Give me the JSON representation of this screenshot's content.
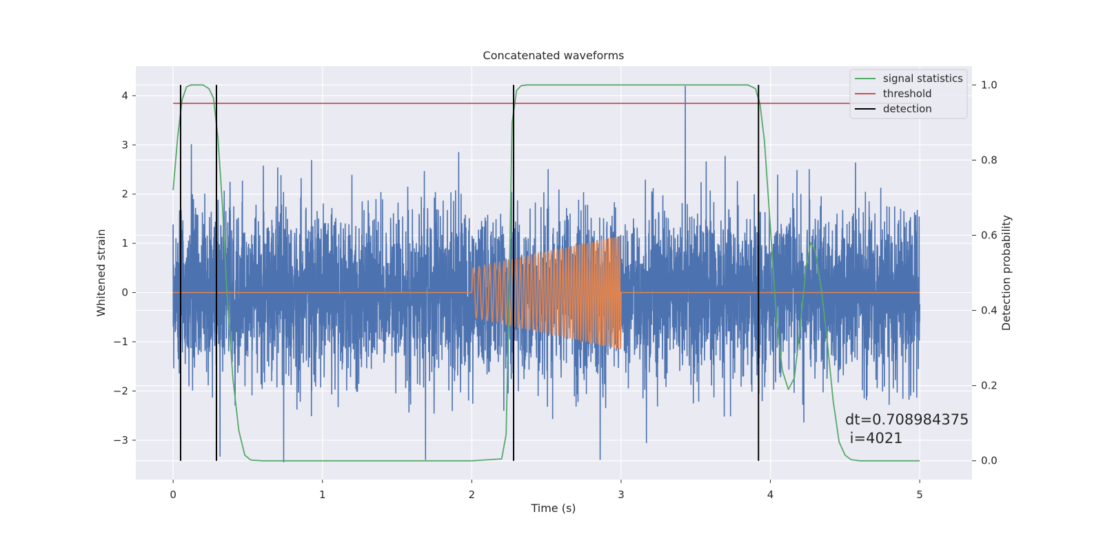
{
  "chart_data": {
    "type": "line",
    "title": "Concatenated waveforms",
    "xlabel": "Time (s)",
    "ylabel_left": "Whitened strain",
    "ylabel_right": "Detection probability",
    "xlim": [
      -0.25,
      5.35
    ],
    "ylim_left": [
      -3.8,
      4.6
    ],
    "ylim_right": [
      -0.05,
      1.05
    ],
    "x_ticks": [
      0,
      1,
      2,
      3,
      4,
      5
    ],
    "x_tick_labels": [
      "0",
      "1",
      "2",
      "3",
      "4",
      "5"
    ],
    "y_ticks_left": [
      -3,
      -2,
      -1,
      0,
      1,
      2,
      3,
      4
    ],
    "y_tick_labels_left": [
      "−3",
      "−2",
      "−1",
      "0",
      "1",
      "2",
      "3",
      "4"
    ],
    "y_ticks_right": [
      0.0,
      0.2,
      0.4,
      0.6,
      0.8,
      1.0
    ],
    "y_tick_labels_right": [
      "0.0",
      "0.2",
      "0.4",
      "0.6",
      "0.8",
      "1.0"
    ],
    "grid": true,
    "legend_position": "top-right",
    "series": [
      {
        "name": "",
        "axis": "left",
        "style": "noise",
        "color": "#4c72b0",
        "x_range": [
          0,
          5
        ],
        "amplitude_std": 0.85,
        "peak_values": [
          {
            "x": 3.43,
            "y": 4.2
          },
          {
            "x": 1.69,
            "y": -3.4
          },
          {
            "x": 0.74,
            "y": -3.45
          },
          {
            "x": 2.86,
            "y": -3.4
          },
          {
            "x": 0.05,
            "y": -3.1
          }
        ]
      },
      {
        "name": "",
        "axis": "left",
        "style": "chirp",
        "color": "#dd8452",
        "x_range": [
          0,
          5
        ],
        "chirp_start": 2.0,
        "chirp_end": 3.0,
        "amp_start": 0.5,
        "amp_end": 1.15,
        "freq_start": 24,
        "freq_end": 70
      },
      {
        "name": "signal statistics",
        "axis": "right",
        "color": "#55a868",
        "x": [
          0.0,
          0.03,
          0.06,
          0.09,
          0.12,
          0.16,
          0.2,
          0.24,
          0.27,
          0.3,
          0.33,
          0.36,
          0.4,
          0.44,
          0.48,
          0.52,
          0.6,
          1.0,
          2.0,
          2.2,
          2.23,
          2.25,
          2.27,
          2.3,
          2.33,
          2.37,
          2.45,
          3.0,
          3.85,
          3.9,
          3.93,
          3.96,
          4.0,
          4.04,
          4.08,
          4.12,
          4.16,
          4.2,
          4.24,
          4.27,
          4.3,
          4.34,
          4.38,
          4.42,
          4.46,
          4.5,
          4.54,
          4.6,
          5.0
        ],
        "y": [
          0.72,
          0.86,
          0.96,
          0.995,
          1.0,
          1.0,
          1.0,
          0.99,
          0.965,
          0.86,
          0.68,
          0.45,
          0.22,
          0.08,
          0.015,
          0.002,
          0.0,
          0.0,
          0.0,
          0.005,
          0.07,
          0.45,
          0.9,
          0.985,
          0.998,
          1.0,
          1.0,
          1.0,
          1.0,
          0.99,
          0.95,
          0.85,
          0.62,
          0.38,
          0.24,
          0.19,
          0.22,
          0.36,
          0.52,
          0.58,
          0.56,
          0.46,
          0.32,
          0.16,
          0.05,
          0.015,
          0.003,
          0.0,
          0.0
        ]
      },
      {
        "name": "threshold",
        "axis": "right",
        "color": "#c44e52",
        "x": [
          0,
          5
        ],
        "y": [
          0.951,
          0.951
        ]
      },
      {
        "name": "detection",
        "axis": "right",
        "style": "vlines",
        "color": "#000000",
        "x": [
          0.05,
          0.29,
          2.28,
          3.92
        ],
        "y_range": [
          0.0,
          1.0
        ]
      }
    ],
    "annotation": {
      "line1": "dt=0.708984375",
      "line2": " i=4021",
      "x": 4.5,
      "y_right": 0.1
    }
  }
}
